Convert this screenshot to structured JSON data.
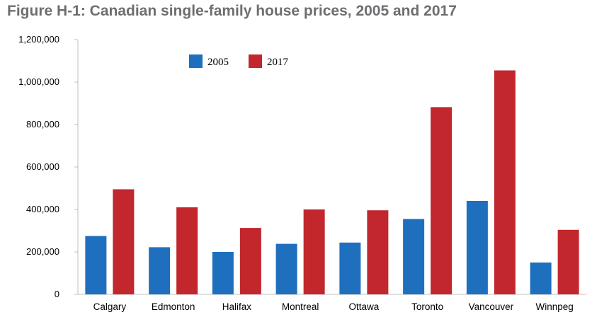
{
  "title": "Figure H-1: Canadian single-family house prices, 2005 and 2017",
  "chart_data": {
    "type": "bar",
    "title": "Figure H-1: Canadian single-family house prices, 2005 and 2017",
    "xlabel": "",
    "ylabel": "",
    "categories": [
      "Calgary",
      "Edmonton",
      "Halifax",
      "Montreal",
      "Ottawa",
      "Toronto",
      "Vancouver",
      "Winnpeg"
    ],
    "series": [
      {
        "name": "2005",
        "color": "#1f6fbf",
        "values": [
          275000,
          222000,
          200000,
          238000,
          244000,
          355000,
          440000,
          150000
        ]
      },
      {
        "name": "2017",
        "color": "#c1272d",
        "values": [
          495000,
          410000,
          313000,
          400000,
          396000,
          882000,
          1055000,
          304000
        ]
      }
    ],
    "ylim": [
      0,
      1200000
    ],
    "yticks": [
      "0",
      "200,000",
      "400,000",
      "600,000",
      "800,000",
      "1,000,000",
      "1,200,000"
    ],
    "ytick_values": [
      0,
      200000,
      400000,
      600000,
      800000,
      1000000,
      1200000
    ],
    "grid": false,
    "legend_position": "top-left"
  }
}
